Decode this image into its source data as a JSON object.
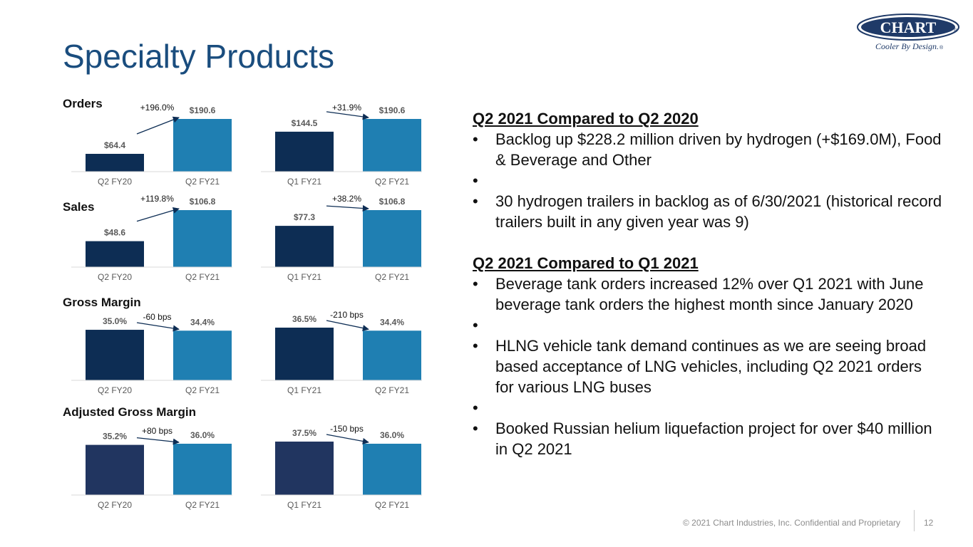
{
  "title": "Specialty Products",
  "logo": {
    "wordmark": "CHART",
    "tagline": "Cooler By Design.",
    "reg": "®",
    "color": "#1f3a68"
  },
  "colors": {
    "dark": "#0d2d54",
    "navy": "#213560",
    "blue": "#1f7fb2",
    "axis": "#d9d9d9",
    "value": "#595959"
  },
  "sections": [
    {
      "label": "Orders"
    },
    {
      "label": "Sales"
    },
    {
      "label": "Gross Margin"
    },
    {
      "label": "Adjusted Gross Margin"
    }
  ],
  "chart_data": [
    {
      "type": "bar",
      "metric": "Orders",
      "categories": [
        "Q2 FY20",
        "Q2 FY21"
      ],
      "values": [
        64.4,
        190.6
      ],
      "value_labels": [
        "$64.4",
        "$190.6"
      ],
      "change_label": "+196.0%",
      "ylim": [
        0,
        190.6
      ]
    },
    {
      "type": "bar",
      "metric": "Orders",
      "categories": [
        "Q1 FY21",
        "Q2 FY21"
      ],
      "values": [
        144.5,
        190.6
      ],
      "value_labels": [
        "$144.5",
        "$190.6"
      ],
      "change_label": "+31.9%",
      "ylim": [
        0,
        190.6
      ]
    },
    {
      "type": "bar",
      "metric": "Sales",
      "categories": [
        "Q2 FY20",
        "Q2 FY21"
      ],
      "values": [
        48.6,
        106.8
      ],
      "value_labels": [
        "$48.6",
        "$106.8"
      ],
      "change_label": "+119.8%",
      "ylim": [
        0,
        106.8
      ]
    },
    {
      "type": "bar",
      "metric": "Sales",
      "categories": [
        "Q1 FY21",
        "Q2 FY21"
      ],
      "values": [
        77.3,
        106.8
      ],
      "value_labels": [
        "$77.3",
        "$106.8"
      ],
      "change_label": "+38.2%",
      "ylim": [
        0,
        106.8
      ]
    },
    {
      "type": "bar",
      "metric": "Gross Margin",
      "categories": [
        "Q2 FY20",
        "Q2 FY21"
      ],
      "values": [
        35.0,
        34.4
      ],
      "value_labels": [
        "35.0%",
        "34.4%"
      ],
      "change_label": "-60 bps",
      "ylim": [
        0,
        36.5
      ]
    },
    {
      "type": "bar",
      "metric": "Gross Margin",
      "categories": [
        "Q1 FY21",
        "Q2 FY21"
      ],
      "values": [
        36.5,
        34.4
      ],
      "value_labels": [
        "36.5%",
        "34.4%"
      ],
      "change_label": "-210 bps",
      "ylim": [
        0,
        36.5
      ]
    },
    {
      "type": "bar",
      "metric": "Adjusted Gross Margin",
      "categories": [
        "Q2 FY20",
        "Q2 FY21"
      ],
      "values": [
        35.2,
        36.0
      ],
      "value_labels": [
        "35.2%",
        "36.0%"
      ],
      "change_label": "+80 bps",
      "ylim": [
        0,
        37.5
      ]
    },
    {
      "type": "bar",
      "metric": "Adjusted Gross Margin",
      "categories": [
        "Q1 FY21",
        "Q2 FY21"
      ],
      "values": [
        37.5,
        36.0
      ],
      "value_labels": [
        "37.5%",
        "36.0%"
      ],
      "change_label": "-150 bps",
      "ylim": [
        0,
        37.5
      ]
    }
  ],
  "commentary": {
    "blocks": [
      {
        "heading": "Q2 2021 Compared to Q2 2020",
        "bullets": [
          "Backlog up $228.2 million driven by hydrogen (+$169.0M), Food & Beverage and Other",
          "30 hydrogen trailers in backlog as of 6/30/2021 (historical record trailers built in any given year was 9)"
        ]
      },
      {
        "heading": "Q2 2021 Compared to Q1 2021",
        "bullets": [
          "Beverage tank orders increased 12% over Q1 2021 with June beverage tank orders the highest month since January 2020",
          "HLNG vehicle tank demand continues as we are seeing broad based acceptance of LNG vehicles, including Q2 2021 orders for various LNG buses",
          "Booked Russian helium liquefaction project for over $40 million in Q2 2021"
        ]
      }
    ]
  },
  "footer": {
    "text": "© 2021 Chart Industries, Inc. Confidential and Proprietary",
    "page": "12"
  }
}
